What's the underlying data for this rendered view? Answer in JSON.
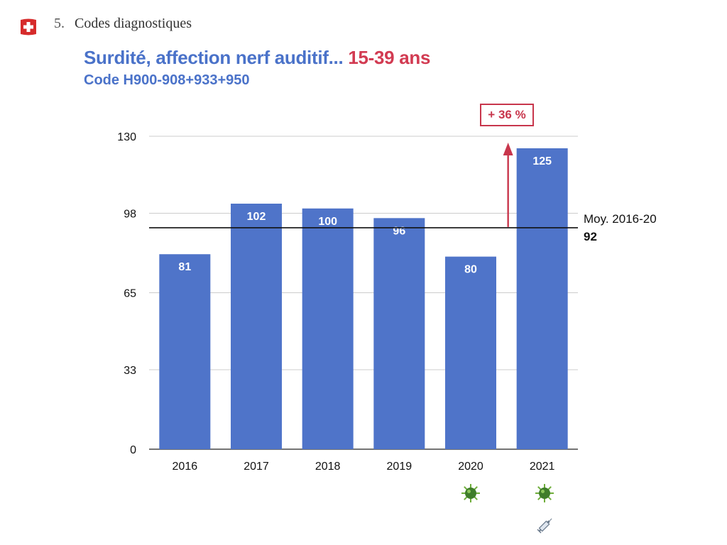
{
  "header": {
    "section_number": "5.",
    "section_title": "Codes diagnostiques",
    "flag": "swiss-flag-icon"
  },
  "chart_data": {
    "type": "bar",
    "title": "Surdité, affection nerf auditif...",
    "title_highlight": "15-39 ans",
    "subtitle": "Code H900-908+933+950",
    "categories": [
      "2016",
      "2017",
      "2018",
      "2019",
      "2020",
      "2021"
    ],
    "values": [
      81,
      102,
      100,
      96,
      80,
      125
    ],
    "data_labels": [
      "81",
      "102",
      "100",
      "96",
      "80",
      "125"
    ],
    "y_ticks": [
      0,
      33,
      65,
      98,
      130
    ],
    "ylim": [
      0,
      130
    ],
    "grid": true,
    "bar_color": "#4f74c9",
    "reference_line": {
      "label": "Moy. 2016-20",
      "value": 92,
      "value_label": "92"
    },
    "annotation": {
      "text": "+ 36 %",
      "color": "#c8364c"
    },
    "category_icons": {
      "2020": [
        "virus-icon"
      ],
      "2021": [
        "virus-icon",
        "syringe-icon"
      ]
    }
  }
}
